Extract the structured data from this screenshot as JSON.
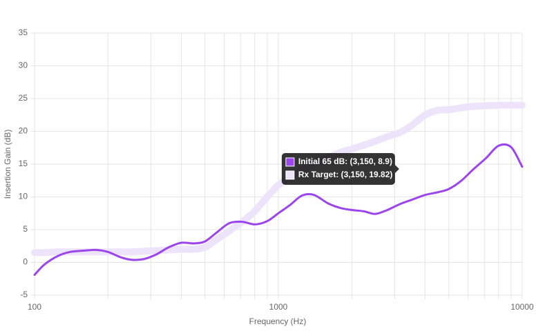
{
  "chart_data": {
    "type": "line",
    "x_label": "Frequency (Hz)",
    "y_label": "Insertion Gain (dB)",
    "x_scale": "log",
    "grid": true,
    "x": [
      100,
      110,
      125,
      140,
      160,
      180,
      200,
      225,
      250,
      280,
      315,
      355,
      400,
      450,
      500,
      560,
      630,
      710,
      800,
      900,
      1000,
      1120,
      1250,
      1400,
      1600,
      1800,
      2000,
      2240,
      2500,
      2800,
      3150,
      3550,
      4000,
      4500,
      5000,
      5600,
      6300,
      7100,
      8000,
      9000,
      10000
    ],
    "series": [
      {
        "name": "Rx Target",
        "color": "#ede4fc",
        "width": 10,
        "values": [
          1.5,
          1.5,
          1.6,
          1.6,
          1.6,
          1.6,
          1.6,
          1.6,
          1.6,
          1.7,
          1.8,
          1.9,
          2.0,
          2.0,
          2.3,
          3.5,
          4.8,
          6.2,
          7.8,
          10.0,
          11.8,
          13.0,
          14.2,
          15.2,
          16.0,
          16.8,
          17.3,
          17.9,
          18.5,
          19.2,
          19.82,
          21.0,
          22.5,
          23.2,
          23.3,
          23.6,
          23.8,
          23.9,
          24.0,
          24.0,
          24.0
        ]
      },
      {
        "name": "Initial 65 dB",
        "color": "#9b45ef",
        "width": 3,
        "values": [
          -1.9,
          -0.3,
          1.0,
          1.6,
          1.8,
          1.9,
          1.6,
          0.8,
          0.4,
          0.5,
          1.2,
          2.3,
          3.0,
          2.9,
          3.2,
          4.6,
          6.0,
          6.2,
          5.8,
          6.3,
          7.5,
          8.8,
          10.2,
          10.3,
          9.0,
          8.3,
          8.0,
          7.8,
          7.4,
          8.0,
          8.9,
          9.6,
          10.3,
          10.7,
          11.2,
          12.4,
          14.2,
          15.9,
          17.8,
          17.6,
          14.6
        ]
      }
    ],
    "xlim": [
      100,
      10000
    ],
    "xticks": [
      100,
      1000,
      10000
    ],
    "x_minor_ticks": [
      200,
      300,
      400,
      500,
      600,
      700,
      800,
      900,
      2000,
      3000,
      4000,
      5000,
      6000,
      7000,
      8000,
      9000
    ],
    "ylim": [
      -5,
      35
    ],
    "yticks": [
      -5,
      0,
      5,
      10,
      15,
      20,
      25,
      30,
      35
    ],
    "tooltip": {
      "x": 3150,
      "items": [
        {
          "series": 1,
          "text": "Initial 65 dB: (3,150, 8.9)"
        },
        {
          "series": 0,
          "text": "Rx Target: (3,150, 19.82)"
        }
      ]
    }
  }
}
